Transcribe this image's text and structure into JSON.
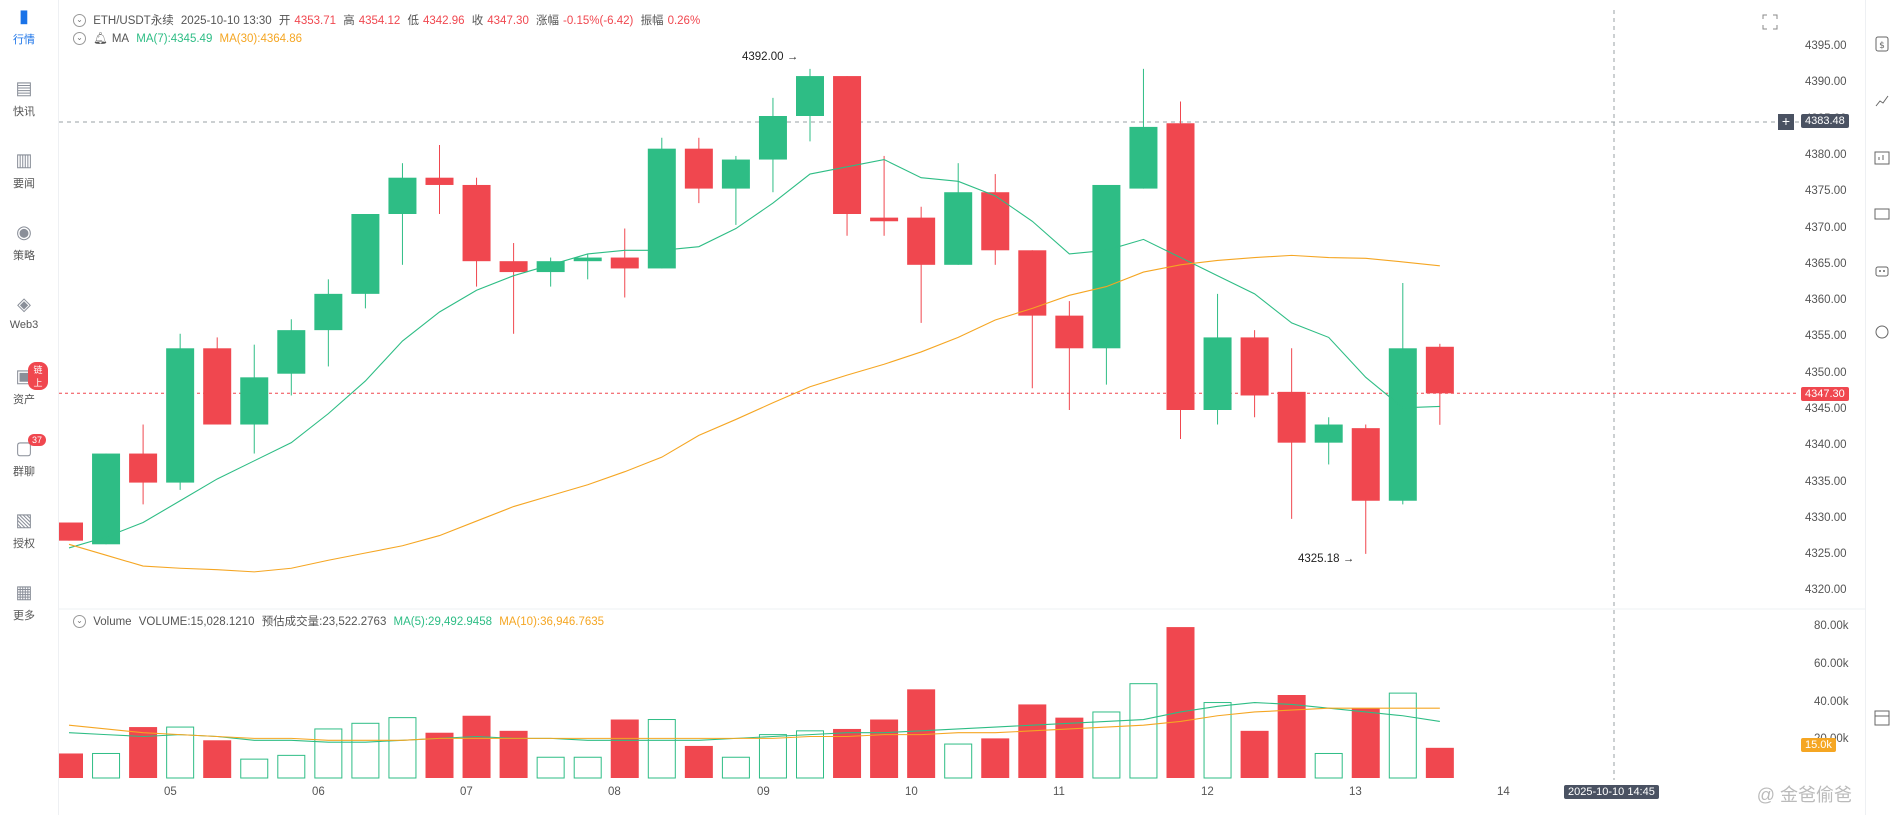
{
  "sidebar": {
    "items": [
      {
        "label": "行情",
        "icon": "bar-chart-icon",
        "active": true
      },
      {
        "label": "快讯",
        "icon": "news-icon"
      },
      {
        "label": "要闻",
        "icon": "article-icon"
      },
      {
        "label": "策略",
        "icon": "robot-icon"
      },
      {
        "label": "Web3",
        "icon": "web3-icon"
      },
      {
        "label": "资产",
        "icon": "wallet-icon",
        "badge": "链上"
      },
      {
        "label": "群聊",
        "icon": "chat-icon",
        "badge": "37"
      },
      {
        "label": "授权",
        "icon": "authorize-icon"
      },
      {
        "label": "更多",
        "icon": "grid-icon"
      }
    ]
  },
  "legend": {
    "symbol": "ETH/USDT永续",
    "datetime": "2025-10-10 13:30",
    "open_label": "开",
    "open": "4353.71",
    "high_label": "高",
    "high": "4354.12",
    "low_label": "低",
    "low": "4342.96",
    "close_label": "收",
    "close": "4347.30",
    "change_label": "涨幅",
    "change": "-0.15%(-6.42)",
    "amp_label": "振幅",
    "amp": "0.26%",
    "ma_label": "MA",
    "ma7": "MA(7):4345.49",
    "ma30": "MA(30):4364.86"
  },
  "volume_legend": {
    "label": "Volume",
    "volume": "VOLUME:15,028.1210",
    "est": "预估成交量:23,522.2763",
    "ma5": "MA(5):29,492.9458",
    "ma10": "MA(10):36,946.7635"
  },
  "price_axis": [
    "4395.00",
    "4390.00",
    "4385.00",
    "4380.00",
    "4375.00",
    "4370.00",
    "4365.00",
    "4360.00",
    "4355.00",
    "4350.00",
    "4345.00",
    "4340.00",
    "4335.00",
    "4330.00",
    "4325.00",
    "4320.00"
  ],
  "volume_axis": [
    "80.00k",
    "60.00k",
    "40.00k",
    "20.00k"
  ],
  "x_axis": [
    "05",
    "06",
    "07",
    "08",
    "09",
    "10",
    "11",
    "12",
    "13",
    "14"
  ],
  "crosshair": {
    "price": "4383.48",
    "time": "2025-10-10 14:45",
    "volume": "15.0k"
  },
  "last_price": "4347.30",
  "annotations": {
    "high": "4392.00",
    "low": "4325.18"
  },
  "watermark": "@ 金爸偷爸",
  "colors": {
    "up": "#2ebd85",
    "down": "#f0474f",
    "ma7": "#2ebd85",
    "ma30": "#f5a623"
  },
  "chart_data": {
    "type": "candlestick",
    "candles": [
      {
        "o": 4329.5,
        "h": 4329.5,
        "l": 4327.0,
        "c": 4327.0,
        "v": 13
      },
      {
        "o": 4326.5,
        "h": 4339.0,
        "l": 4326.5,
        "c": 4339.0,
        "v": 13
      },
      {
        "o": 4339.0,
        "h": 4343.0,
        "l": 4332.0,
        "c": 4335.0,
        "v": 27
      },
      {
        "o": 4335.0,
        "h": 4355.5,
        "l": 4334.0,
        "c": 4353.5,
        "v": 27
      },
      {
        "o": 4353.5,
        "h": 4355.0,
        "l": 4343.0,
        "c": 4343.0,
        "v": 20
      },
      {
        "o": 4343.0,
        "h": 4354.0,
        "l": 4339.0,
        "c": 4349.5,
        "v": 10
      },
      {
        "o": 4350.0,
        "h": 4357.5,
        "l": 4347.0,
        "c": 4356.0,
        "v": 12
      },
      {
        "o": 4356.0,
        "h": 4363.0,
        "l": 4351.0,
        "c": 4361.0,
        "v": 26
      },
      {
        "o": 4361.0,
        "h": 4372.0,
        "l": 4359.0,
        "c": 4372.0,
        "v": 29
      },
      {
        "o": 4372.0,
        "h": 4379.0,
        "l": 4365.0,
        "c": 4377.0,
        "v": 32
      },
      {
        "o": 4377.0,
        "h": 4381.5,
        "l": 4372.0,
        "c": 4376.0,
        "v": 24
      },
      {
        "o": 4376.0,
        "h": 4377.0,
        "l": 4362.0,
        "c": 4365.5,
        "v": 33
      },
      {
        "o": 4365.5,
        "h": 4368.0,
        "l": 4355.5,
        "c": 4364.0,
        "v": 25
      },
      {
        "o": 4364.0,
        "h": 4366.0,
        "l": 4362.0,
        "c": 4365.5,
        "v": 11
      },
      {
        "o": 4365.5,
        "h": 4366.5,
        "l": 4363.0,
        "c": 4366.0,
        "v": 11
      },
      {
        "o": 4366.0,
        "h": 4370.0,
        "l": 4360.5,
        "c": 4364.5,
        "v": 31
      },
      {
        "o": 4364.5,
        "h": 4382.5,
        "l": 4364.5,
        "c": 4381.0,
        "v": 31
      },
      {
        "o": 4381.0,
        "h": 4382.5,
        "l": 4373.5,
        "c": 4375.5,
        "v": 17
      },
      {
        "o": 4375.5,
        "h": 4380.0,
        "l": 4370.5,
        "c": 4379.5,
        "v": 11
      },
      {
        "o": 4379.5,
        "h": 4388.0,
        "l": 4375.0,
        "c": 4385.5,
        "v": 23
      },
      {
        "o": 4385.5,
        "h": 4392.0,
        "l": 4382.0,
        "c": 4391.0,
        "v": 25
      },
      {
        "o": 4391.0,
        "h": 4391.0,
        "l": 4369.0,
        "c": 4372.0,
        "v": 26
      },
      {
        "o": 4371.5,
        "h": 4380.0,
        "l": 4369.0,
        "c": 4371.0,
        "v": 31
      },
      {
        "o": 4371.5,
        "h": 4373.0,
        "l": 4357.0,
        "c": 4365.0,
        "v": 47
      },
      {
        "o": 4365.0,
        "h": 4379.0,
        "l": 4365.0,
        "c": 4375.0,
        "v": 18
      },
      {
        "o": 4375.0,
        "h": 4377.5,
        "l": 4365.0,
        "c": 4367.0,
        "v": 21
      },
      {
        "o": 4367.0,
        "h": 4367.0,
        "l": 4348.0,
        "c": 4358.0,
        "v": 39
      },
      {
        "o": 4358.0,
        "h": 4360.0,
        "l": 4345.0,
        "c": 4353.5,
        "v": 32
      },
      {
        "o": 4353.5,
        "h": 4376.0,
        "l": 4348.5,
        "c": 4376.0,
        "v": 35
      },
      {
        "o": 4375.5,
        "h": 4392.0,
        "l": 4375.5,
        "c": 4384.0,
        "v": 50
      },
      {
        "o": 4384.5,
        "h": 4387.5,
        "l": 4341.0,
        "c": 4345.0,
        "v": 80
      },
      {
        "o": 4345.0,
        "h": 4361.0,
        "l": 4343.0,
        "c": 4355.0,
        "v": 40
      },
      {
        "o": 4355.0,
        "h": 4356.0,
        "l": 4344.0,
        "c": 4347.0,
        "v": 25
      },
      {
        "o": 4347.5,
        "h": 4353.5,
        "l": 4330.0,
        "c": 4340.5,
        "v": 44
      },
      {
        "o": 4340.5,
        "h": 4344.0,
        "l": 4337.5,
        "c": 4343.0,
        "v": 13
      },
      {
        "o": 4342.5,
        "h": 4343.0,
        "l": 4325.18,
        "c": 4332.5,
        "v": 37
      },
      {
        "o": 4332.5,
        "h": 4362.5,
        "l": 4332.0,
        "c": 4353.5,
        "v": 45
      },
      {
        "o": 4353.71,
        "h": 4354.12,
        "l": 4342.96,
        "c": 4347.3,
        "v": 16
      }
    ],
    "ma7": [
      4326,
      4327.5,
      4329.5,
      4332.5,
      4335.5,
      4338,
      4340.5,
      4344.5,
      4349,
      4354.5,
      4358.5,
      4361.5,
      4363.5,
      4365,
      4366.5,
      4367,
      4367,
      4367.5,
      4370,
      4373.5,
      4377.5,
      4378.5,
      4379.5,
      4377,
      4376.5,
      4374.5,
      4371,
      4366.5,
      4367,
      4368.5,
      4366,
      4363.5,
      4361,
      4357,
      4355,
      4349.5,
      4345.3,
      4345.49
    ],
    "ma30": [
      4326.5,
      4325,
      4323.5,
      4323.2,
      4323,
      4322.7,
      4323.2,
      4324.3,
      4325.3,
      4326.3,
      4327.7,
      4329.7,
      4331.7,
      4333.2,
      4334.7,
      4336.5,
      4338.5,
      4341.5,
      4343.7,
      4346,
      4348.2,
      4349.8,
      4351.3,
      4353,
      4355,
      4357.4,
      4359,
      4360.8,
      4362,
      4364,
      4365,
      4365.6,
      4366,
      4366.3,
      4366,
      4365.9,
      4365.4,
      4364.86
    ],
    "vma5": [
      24,
      23,
      22,
      23,
      22,
      20,
      20,
      19,
      19,
      20,
      21,
      22,
      21,
      21,
      20,
      20,
      20,
      20,
      21,
      22,
      23,
      24,
      24,
      25,
      26,
      27,
      28,
      29,
      30,
      31,
      35,
      38,
      40,
      39,
      37,
      35,
      33,
      30
    ],
    "vma10": [
      28,
      26,
      24,
      23,
      22,
      21,
      21,
      20,
      20,
      20,
      21,
      21,
      21,
      21,
      21,
      21,
      21,
      21,
      21,
      21,
      22,
      22,
      23,
      23,
      24,
      24,
      25,
      26,
      27,
      28,
      30,
      33,
      35,
      36,
      37,
      37,
      37,
      37
    ],
    "price_range": [
      4318,
      4399
    ],
    "volume_range": [
      0,
      88
    ]
  }
}
